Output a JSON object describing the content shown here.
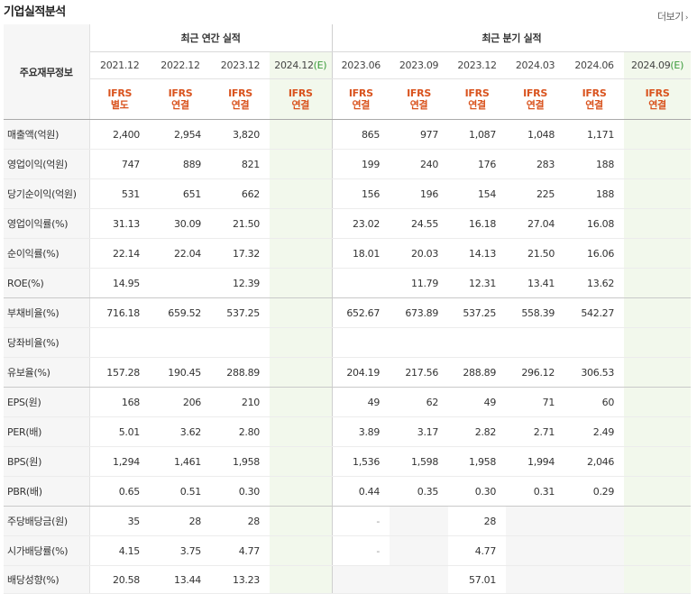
{
  "header": {
    "title": "기업실적분석",
    "more_label": "더보기"
  },
  "table": {
    "row_header_label": "주요재무정보",
    "groups": {
      "annual": "최근 연간 실적",
      "quarterly": "최근 분기 실적"
    },
    "annual_periods": [
      "2021.12",
      "2022.12",
      "2023.12",
      "2024.12"
    ],
    "quarter_periods": [
      "2023.06",
      "2023.09",
      "2023.12",
      "2024.03",
      "2024.06",
      "2024.09"
    ],
    "estimate_mark": "(E)",
    "annual_basis": [
      [
        "IFRS",
        "별도"
      ],
      [
        "IFRS",
        "연결"
      ],
      [
        "IFRS",
        "연결"
      ],
      [
        "IFRS",
        "연결"
      ]
    ],
    "quarter_basis": [
      [
        "IFRS",
        "연결"
      ],
      [
        "IFRS",
        "연결"
      ],
      [
        "IFRS",
        "연결"
      ],
      [
        "IFRS",
        "연결"
      ],
      [
        "IFRS",
        "연결"
      ],
      [
        "IFRS",
        "연결"
      ]
    ],
    "rows": [
      {
        "label": "매출액(억원)",
        "annual": [
          "2,400",
          "2,954",
          "3,820",
          ""
        ],
        "quarter": [
          "865",
          "977",
          "1,087",
          "1,048",
          "1,171",
          ""
        ]
      },
      {
        "label": "영업이익(억원)",
        "annual": [
          "747",
          "889",
          "821",
          ""
        ],
        "quarter": [
          "199",
          "240",
          "176",
          "283",
          "188",
          ""
        ]
      },
      {
        "label": "당기순이익(억원)",
        "annual": [
          "531",
          "651",
          "662",
          ""
        ],
        "quarter": [
          "156",
          "196",
          "154",
          "225",
          "188",
          ""
        ]
      },
      {
        "label": "영업이익률(%)",
        "annual": [
          "31.13",
          "30.09",
          "21.50",
          ""
        ],
        "quarter": [
          "23.02",
          "24.55",
          "16.18",
          "27.04",
          "16.08",
          ""
        ]
      },
      {
        "label": "순이익률(%)",
        "annual": [
          "22.14",
          "22.04",
          "17.32",
          ""
        ],
        "quarter": [
          "18.01",
          "20.03",
          "14.13",
          "21.50",
          "16.06",
          ""
        ]
      },
      {
        "label": "ROE(%)",
        "annual": [
          "14.95",
          "",
          "12.39",
          ""
        ],
        "quarter": [
          "",
          "11.79",
          "12.31",
          "13.41",
          "13.62",
          ""
        ]
      },
      {
        "label": "부채비율(%)",
        "annual": [
          "716.18",
          "659.52",
          "537.25",
          ""
        ],
        "quarter": [
          "652.67",
          "673.89",
          "537.25",
          "558.39",
          "542.27",
          ""
        ]
      },
      {
        "label": "당좌비율(%)",
        "annual": [
          "",
          "",
          "",
          ""
        ],
        "quarter": [
          "",
          "",
          "",
          "",
          "",
          ""
        ]
      },
      {
        "label": "유보율(%)",
        "annual": [
          "157.28",
          "190.45",
          "288.89",
          ""
        ],
        "quarter": [
          "204.19",
          "217.56",
          "288.89",
          "296.12",
          "306.53",
          ""
        ]
      },
      {
        "label": "EPS(원)",
        "annual": [
          "168",
          "206",
          "210",
          ""
        ],
        "quarter": [
          "49",
          "62",
          "49",
          "71",
          "60",
          ""
        ]
      },
      {
        "label": "PER(배)",
        "annual": [
          "5.01",
          "3.62",
          "2.80",
          ""
        ],
        "quarter": [
          "3.89",
          "3.17",
          "2.82",
          "2.71",
          "2.49",
          ""
        ]
      },
      {
        "label": "BPS(원)",
        "annual": [
          "1,294",
          "1,461",
          "1,958",
          ""
        ],
        "quarter": [
          "1,536",
          "1,598",
          "1,958",
          "1,994",
          "2,046",
          ""
        ]
      },
      {
        "label": "PBR(배)",
        "annual": [
          "0.65",
          "0.51",
          "0.30",
          ""
        ],
        "quarter": [
          "0.44",
          "0.35",
          "0.30",
          "0.31",
          "0.29",
          ""
        ]
      },
      {
        "label": "주당배당금(원)",
        "annual": [
          "35",
          "28",
          "28",
          ""
        ],
        "quarter": [
          "-",
          "",
          "28",
          "",
          "",
          ""
        ]
      },
      {
        "label": "시가배당률(%)",
        "annual": [
          "4.15",
          "3.75",
          "4.77",
          ""
        ],
        "quarter": [
          "-",
          "",
          "4.77",
          "",
          "",
          ""
        ]
      },
      {
        "label": "배당성향(%)",
        "annual": [
          "20.58",
          "13.44",
          "13.23",
          ""
        ],
        "quarter": [
          "",
          "",
          "57.01",
          "",
          "",
          ""
        ]
      }
    ]
  }
}
